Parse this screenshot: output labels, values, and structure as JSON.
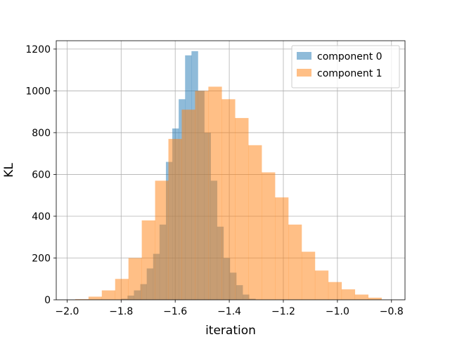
{
  "chart_data": {
    "type": "bar",
    "xlabel": "iteration",
    "ylabel": "KL",
    "xlim": [
      -2.04,
      -0.75
    ],
    "ylim": [
      0,
      1240
    ],
    "grid": true,
    "legend": "top-right",
    "xticks": [
      -2.0,
      -1.8,
      -1.6,
      -1.4,
      -1.2,
      -1.0,
      -0.8
    ],
    "xtick_labels": [
      "−2.0",
      "−1.8",
      "−1.6",
      "−1.4",
      "−1.2",
      "−1.0",
      "−0.8"
    ],
    "yticks": [
      0,
      200,
      400,
      600,
      800,
      1000,
      1200
    ],
    "ytick_labels": [
      "0",
      "200",
      "400",
      "600",
      "800",
      "1000",
      "1200"
    ],
    "series": [
      {
        "name": "component 0",
        "color": "#1f77b4",
        "opacity": 0.5,
        "bin_start": -1.8,
        "bin_width": 0.02366,
        "values": [
          5,
          20,
          45,
          75,
          150,
          220,
          360,
          660,
          820,
          960,
          1170,
          1190,
          1000,
          800,
          570,
          350,
          200,
          130,
          70,
          25,
          5
        ]
      },
      {
        "name": "component 1",
        "color": "#ff7f0e",
        "opacity": 0.5,
        "bin_start": -1.97,
        "bin_width": 0.04927,
        "values": [
          3,
          15,
          45,
          100,
          200,
          380,
          570,
          770,
          910,
          1000,
          1020,
          960,
          870,
          740,
          610,
          490,
          360,
          230,
          140,
          85,
          50,
          25,
          10
        ]
      }
    ]
  }
}
